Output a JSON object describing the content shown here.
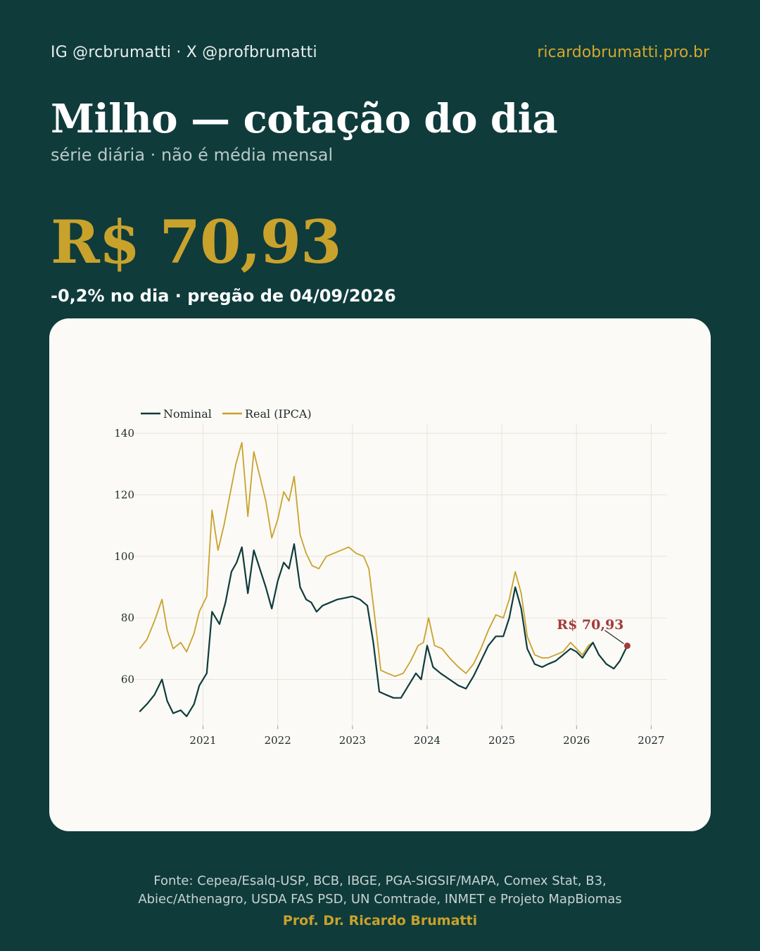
{
  "header": {
    "handles": "IG @rcbrumatti · X @profbrumatti",
    "website": "ricardobrumatti.pro.br"
  },
  "title": "Milho — cotação do dia",
  "subtitle": "série diária · não é média mensal",
  "price": "R$ 70,93",
  "change": "-0,2% no dia · pregão de 04/09/2026",
  "footer": {
    "source_line1": "Fonte: Cepea/Esalq-USP, BCB, IBGE, PGA-SIGSIF/MAPA, Comex Stat, B3,",
    "source_line2": "Abiec/Athenagro, USDA FAS PSD, UN Comtrade, INMET e Projeto MapBiomas",
    "author": "Prof. Dr. Ricardo Brumatti"
  },
  "colors": {
    "background": "#0f3b3b",
    "accent": "#c9a22c",
    "nominal": "#0f3b3b",
    "real": "#c9a22c",
    "annotation": "#a33a3a"
  },
  "chart_data": {
    "type": "line",
    "xlabel": "",
    "ylabel": "",
    "xlim": [
      2020.1,
      2027.1
    ],
    "ylim": [
      45,
      143
    ],
    "x_ticks": [
      "2021",
      "2022",
      "2023",
      "2024",
      "2025",
      "2026",
      "2027"
    ],
    "y_ticks": [
      "60",
      "80",
      "100",
      "120",
      "140"
    ],
    "grid": true,
    "legend_position": "top-left",
    "annotation": {
      "label": "R$ 70,93",
      "x": 2026.68,
      "y": 70.93
    },
    "series": [
      {
        "name": "Nominal",
        "color": "#0f3b3b",
        "points": [
          [
            2020.15,
            49.5
          ],
          [
            2020.25,
            52
          ],
          [
            2020.35,
            55
          ],
          [
            2020.45,
            60
          ],
          [
            2020.52,
            53
          ],
          [
            2020.6,
            49
          ],
          [
            2020.7,
            50
          ],
          [
            2020.78,
            48
          ],
          [
            2020.88,
            52
          ],
          [
            2020.95,
            58
          ],
          [
            2021.05,
            62
          ],
          [
            2021.12,
            82
          ],
          [
            2021.22,
            78
          ],
          [
            2021.3,
            85
          ],
          [
            2021.38,
            95
          ],
          [
            2021.45,
            98
          ],
          [
            2021.52,
            103
          ],
          [
            2021.6,
            88
          ],
          [
            2021.68,
            102
          ],
          [
            2021.76,
            96
          ],
          [
            2021.84,
            90
          ],
          [
            2021.92,
            83
          ],
          [
            2022.0,
            92
          ],
          [
            2022.08,
            98
          ],
          [
            2022.15,
            96
          ],
          [
            2022.22,
            104
          ],
          [
            2022.3,
            90
          ],
          [
            2022.38,
            86
          ],
          [
            2022.45,
            85
          ],
          [
            2022.52,
            82
          ],
          [
            2022.6,
            84
          ],
          [
            2022.7,
            85
          ],
          [
            2022.8,
            86
          ],
          [
            2022.9,
            86.5
          ],
          [
            2023.0,
            87
          ],
          [
            2023.1,
            86
          ],
          [
            2023.2,
            84
          ],
          [
            2023.28,
            72
          ],
          [
            2023.36,
            56
          ],
          [
            2023.45,
            55
          ],
          [
            2023.55,
            54
          ],
          [
            2023.65,
            54
          ],
          [
            2023.75,
            58
          ],
          [
            2023.85,
            62
          ],
          [
            2023.92,
            60
          ],
          [
            2024.0,
            71
          ],
          [
            2024.08,
            64
          ],
          [
            2024.18,
            62
          ],
          [
            2024.3,
            60
          ],
          [
            2024.42,
            58
          ],
          [
            2024.52,
            57
          ],
          [
            2024.62,
            61
          ],
          [
            2024.72,
            66
          ],
          [
            2024.82,
            71
          ],
          [
            2024.92,
            74
          ],
          [
            2025.02,
            74
          ],
          [
            2025.1,
            80
          ],
          [
            2025.18,
            90
          ],
          [
            2025.26,
            83
          ],
          [
            2025.34,
            70
          ],
          [
            2025.44,
            65
          ],
          [
            2025.54,
            64
          ],
          [
            2025.62,
            65
          ],
          [
            2025.72,
            66
          ],
          [
            2025.82,
            68
          ],
          [
            2025.92,
            70
          ],
          [
            2026.0,
            69
          ],
          [
            2026.08,
            67
          ],
          [
            2026.16,
            70
          ],
          [
            2026.22,
            72
          ],
          [
            2026.3,
            68
          ],
          [
            2026.4,
            65
          ],
          [
            2026.5,
            63.5
          ],
          [
            2026.58,
            66
          ],
          [
            2026.68,
            70.93
          ]
        ]
      },
      {
        "name": "Real (IPCA)",
        "color": "#c9a22c",
        "points": [
          [
            2020.15,
            70
          ],
          [
            2020.25,
            73
          ],
          [
            2020.35,
            79
          ],
          [
            2020.45,
            86
          ],
          [
            2020.52,
            76
          ],
          [
            2020.6,
            70
          ],
          [
            2020.7,
            72
          ],
          [
            2020.78,
            69
          ],
          [
            2020.88,
            75
          ],
          [
            2020.95,
            82
          ],
          [
            2021.05,
            87
          ],
          [
            2021.12,
            115
          ],
          [
            2021.2,
            102
          ],
          [
            2021.28,
            110
          ],
          [
            2021.36,
            120
          ],
          [
            2021.44,
            130
          ],
          [
            2021.52,
            137
          ],
          [
            2021.6,
            113
          ],
          [
            2021.68,
            134
          ],
          [
            2021.76,
            126
          ],
          [
            2021.84,
            118
          ],
          [
            2021.92,
            106
          ],
          [
            2022.0,
            112
          ],
          [
            2022.08,
            121
          ],
          [
            2022.15,
            118
          ],
          [
            2022.22,
            126
          ],
          [
            2022.3,
            107
          ],
          [
            2022.38,
            101
          ],
          [
            2022.46,
            97
          ],
          [
            2022.55,
            96
          ],
          [
            2022.65,
            100
          ],
          [
            2022.75,
            101
          ],
          [
            2022.85,
            102
          ],
          [
            2022.95,
            103
          ],
          [
            2023.05,
            101
          ],
          [
            2023.15,
            100
          ],
          [
            2023.22,
            96
          ],
          [
            2023.3,
            80
          ],
          [
            2023.38,
            63
          ],
          [
            2023.47,
            62
          ],
          [
            2023.57,
            61
          ],
          [
            2023.68,
            62
          ],
          [
            2023.78,
            66
          ],
          [
            2023.88,
            71
          ],
          [
            2023.95,
            72
          ],
          [
            2024.02,
            80
          ],
          [
            2024.1,
            71
          ],
          [
            2024.2,
            70
          ],
          [
            2024.3,
            67
          ],
          [
            2024.42,
            64
          ],
          [
            2024.52,
            62
          ],
          [
            2024.62,
            65
          ],
          [
            2024.72,
            70
          ],
          [
            2024.82,
            76
          ],
          [
            2024.92,
            81
          ],
          [
            2025.02,
            80
          ],
          [
            2025.1,
            86
          ],
          [
            2025.18,
            95
          ],
          [
            2025.26,
            88
          ],
          [
            2025.34,
            74
          ],
          [
            2025.44,
            68
          ],
          [
            2025.54,
            67
          ],
          [
            2025.62,
            67
          ],
          [
            2025.72,
            68
          ],
          [
            2025.82,
            69
          ],
          [
            2025.92,
            72
          ],
          [
            2026.0,
            70
          ],
          [
            2026.08,
            68
          ],
          [
            2026.16,
            71
          ],
          [
            2026.22,
            72
          ],
          [
            2026.3,
            68
          ],
          [
            2026.4,
            65
          ],
          [
            2026.5,
            63.5
          ],
          [
            2026.58,
            66
          ],
          [
            2026.68,
            70.93
          ]
        ]
      }
    ]
  }
}
